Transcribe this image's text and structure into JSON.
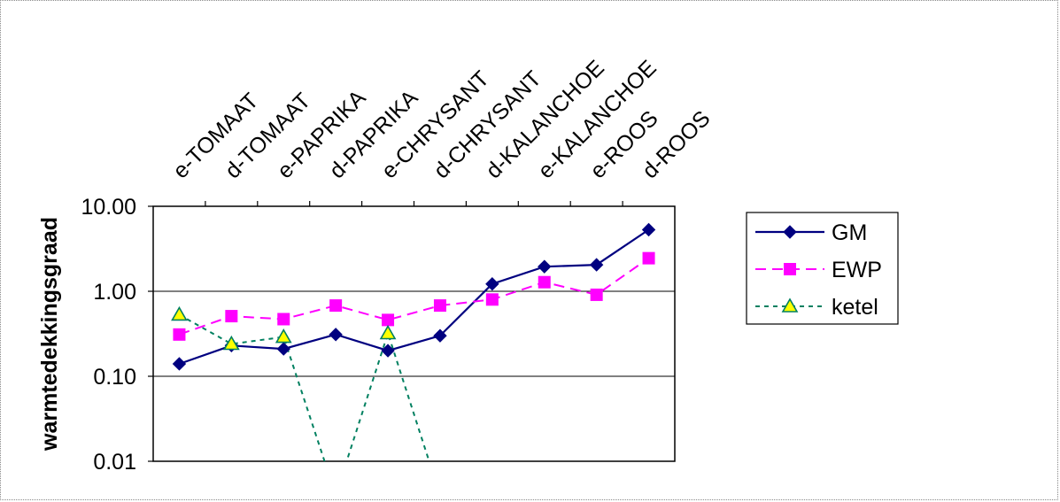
{
  "chart_data": {
    "type": "line",
    "ylabel": "warmtedekkingsgraad",
    "xlabel": "",
    "title": "",
    "yscale": "log",
    "ylim": [
      0.01,
      10
    ],
    "yticks": [
      "10.00",
      "1.00",
      "0.10",
      "0.01"
    ],
    "categories": [
      "e-TOMAAT",
      "d-TOMAAT",
      "e-PAPRIKA",
      "d-PAPRIKA",
      "e-CHRYSANT",
      "d-CHRYSANT",
      "d-KALANCHOE",
      "e-KALANCHOE",
      "e-ROOS",
      "d-ROOS"
    ],
    "legend_position": "right",
    "grid": "horizontal",
    "series": [
      {
        "name": "GM",
        "color": "#000080",
        "marker": "diamond",
        "line": "solid",
        "values": [
          0.14,
          0.23,
          0.21,
          0.31,
          0.2,
          0.3,
          1.22,
          1.95,
          2.05,
          5.3
        ]
      },
      {
        "name": "EWP",
        "color": "#FF00FF",
        "marker": "square",
        "line": "dashed",
        "values": [
          0.31,
          0.51,
          0.47,
          0.68,
          0.46,
          0.68,
          0.8,
          1.28,
          0.91,
          2.45
        ]
      },
      {
        "name": "ketel",
        "color": "#008060",
        "marker": "triangle",
        "marker_fill": "#FFFF00",
        "line": "dotted",
        "values": [
          0.53,
          0.24,
          0.29,
          0.004,
          0.32,
          0.004,
          null,
          null,
          null,
          null
        ]
      }
    ]
  }
}
